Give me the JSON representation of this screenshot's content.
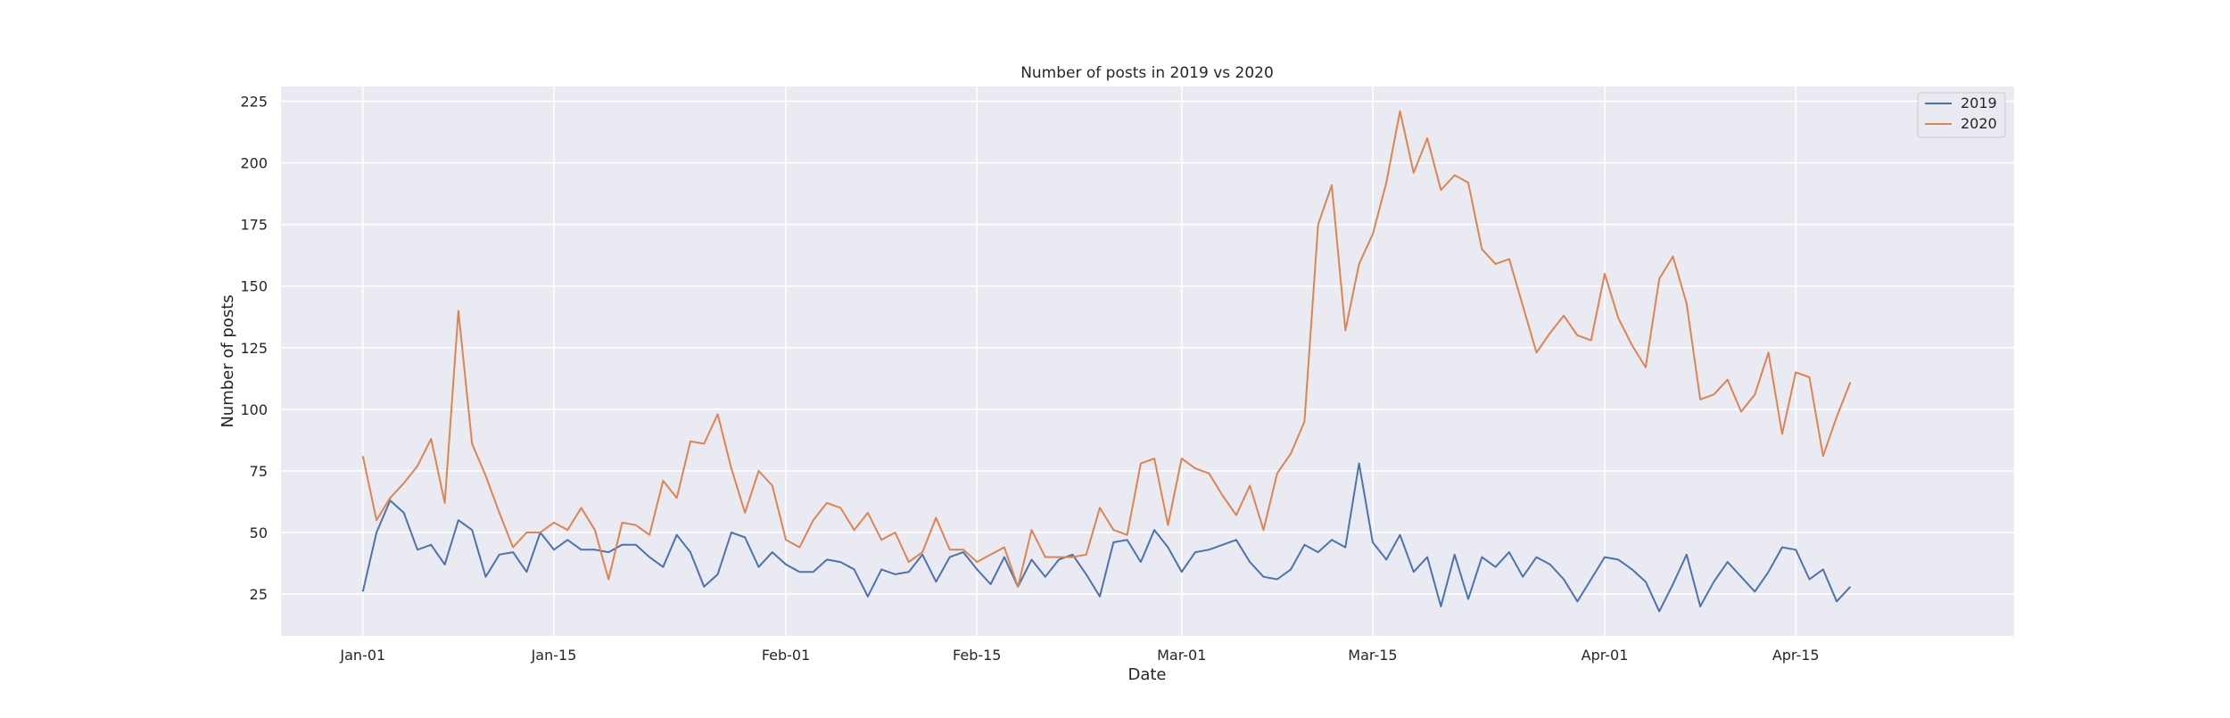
{
  "chart_data": {
    "type": "line",
    "title": "Number of posts in 2019 vs 2020",
    "xlabel": "Date",
    "ylabel": "Number of posts",
    "x_start": "2020-01-01",
    "x_end": "2020-04-22",
    "xlim": [
      "2019-12-26",
      "2020-05-01"
    ],
    "ylim": [
      8,
      231
    ],
    "x_ticks": [
      {
        "date": "2020-01-01",
        "label": "Jan-01"
      },
      {
        "date": "2020-01-15",
        "label": "Jan-15"
      },
      {
        "date": "2020-02-01",
        "label": "Feb-01"
      },
      {
        "date": "2020-02-15",
        "label": "Feb-15"
      },
      {
        "date": "2020-03-01",
        "label": "Mar-01"
      },
      {
        "date": "2020-03-15",
        "label": "Mar-15"
      },
      {
        "date": "2020-04-01",
        "label": "Apr-01"
      },
      {
        "date": "2020-04-15",
        "label": "Apr-15"
      }
    ],
    "y_ticks": [
      25,
      50,
      75,
      100,
      125,
      150,
      175,
      200,
      225
    ],
    "grid": true,
    "legend_position": "top-right",
    "series": [
      {
        "name": "2019",
        "color": "#4c72b0",
        "values": [
          26,
          50,
          63,
          58,
          43,
          45,
          37,
          55,
          51,
          32,
          41,
          42,
          34,
          50,
          43,
          47,
          43,
          43,
          42,
          45,
          45,
          40,
          36,
          49,
          42,
          28,
          33,
          50,
          48,
          36,
          42,
          37,
          34,
          34,
          39,
          38,
          35,
          24,
          35,
          33,
          34,
          41,
          30,
          40,
          42,
          35,
          29,
          40,
          28,
          39,
          32,
          39,
          41,
          33,
          24,
          46,
          47,
          38,
          51,
          44,
          34,
          42,
          43,
          45,
          47,
          38,
          32,
          31,
          35,
          45,
          42,
          47,
          44,
          78,
          46,
          39,
          49,
          34,
          40,
          20,
          41,
          23,
          40,
          36,
          42,
          32,
          40,
          37,
          31,
          22,
          31,
          40,
          39,
          35,
          30,
          18,
          29,
          41,
          20,
          30,
          38,
          32,
          26,
          34,
          44,
          43,
          31,
          35,
          22,
          28
        ]
      },
      {
        "name": "2020",
        "color": "#dd8452",
        "values": [
          81,
          55,
          64,
          70,
          77,
          88,
          62,
          140,
          86,
          73,
          58,
          44,
          50,
          50,
          54,
          51,
          60,
          51,
          31,
          54,
          53,
          49,
          71,
          64,
          87,
          86,
          98,
          76,
          58,
          75,
          69,
          47,
          44,
          55,
          62,
          60,
          51,
          58,
          47,
          50,
          38,
          42,
          56,
          43,
          43,
          38,
          41,
          44,
          28,
          51,
          40,
          40,
          40,
          41,
          60,
          51,
          49,
          78,
          80,
          53,
          80,
          76,
          74,
          65,
          57,
          69,
          51,
          74,
          82,
          95,
          175,
          191,
          132,
          159,
          171,
          192,
          221,
          196,
          210,
          189,
          195,
          192,
          165,
          159,
          161,
          142,
          123,
          131,
          138,
          130,
          128,
          155,
          137,
          126,
          117,
          153,
          162,
          143,
          104,
          106,
          112,
          99,
          106,
          123,
          90,
          115,
          113,
          81,
          97,
          111
        ]
      }
    ]
  }
}
